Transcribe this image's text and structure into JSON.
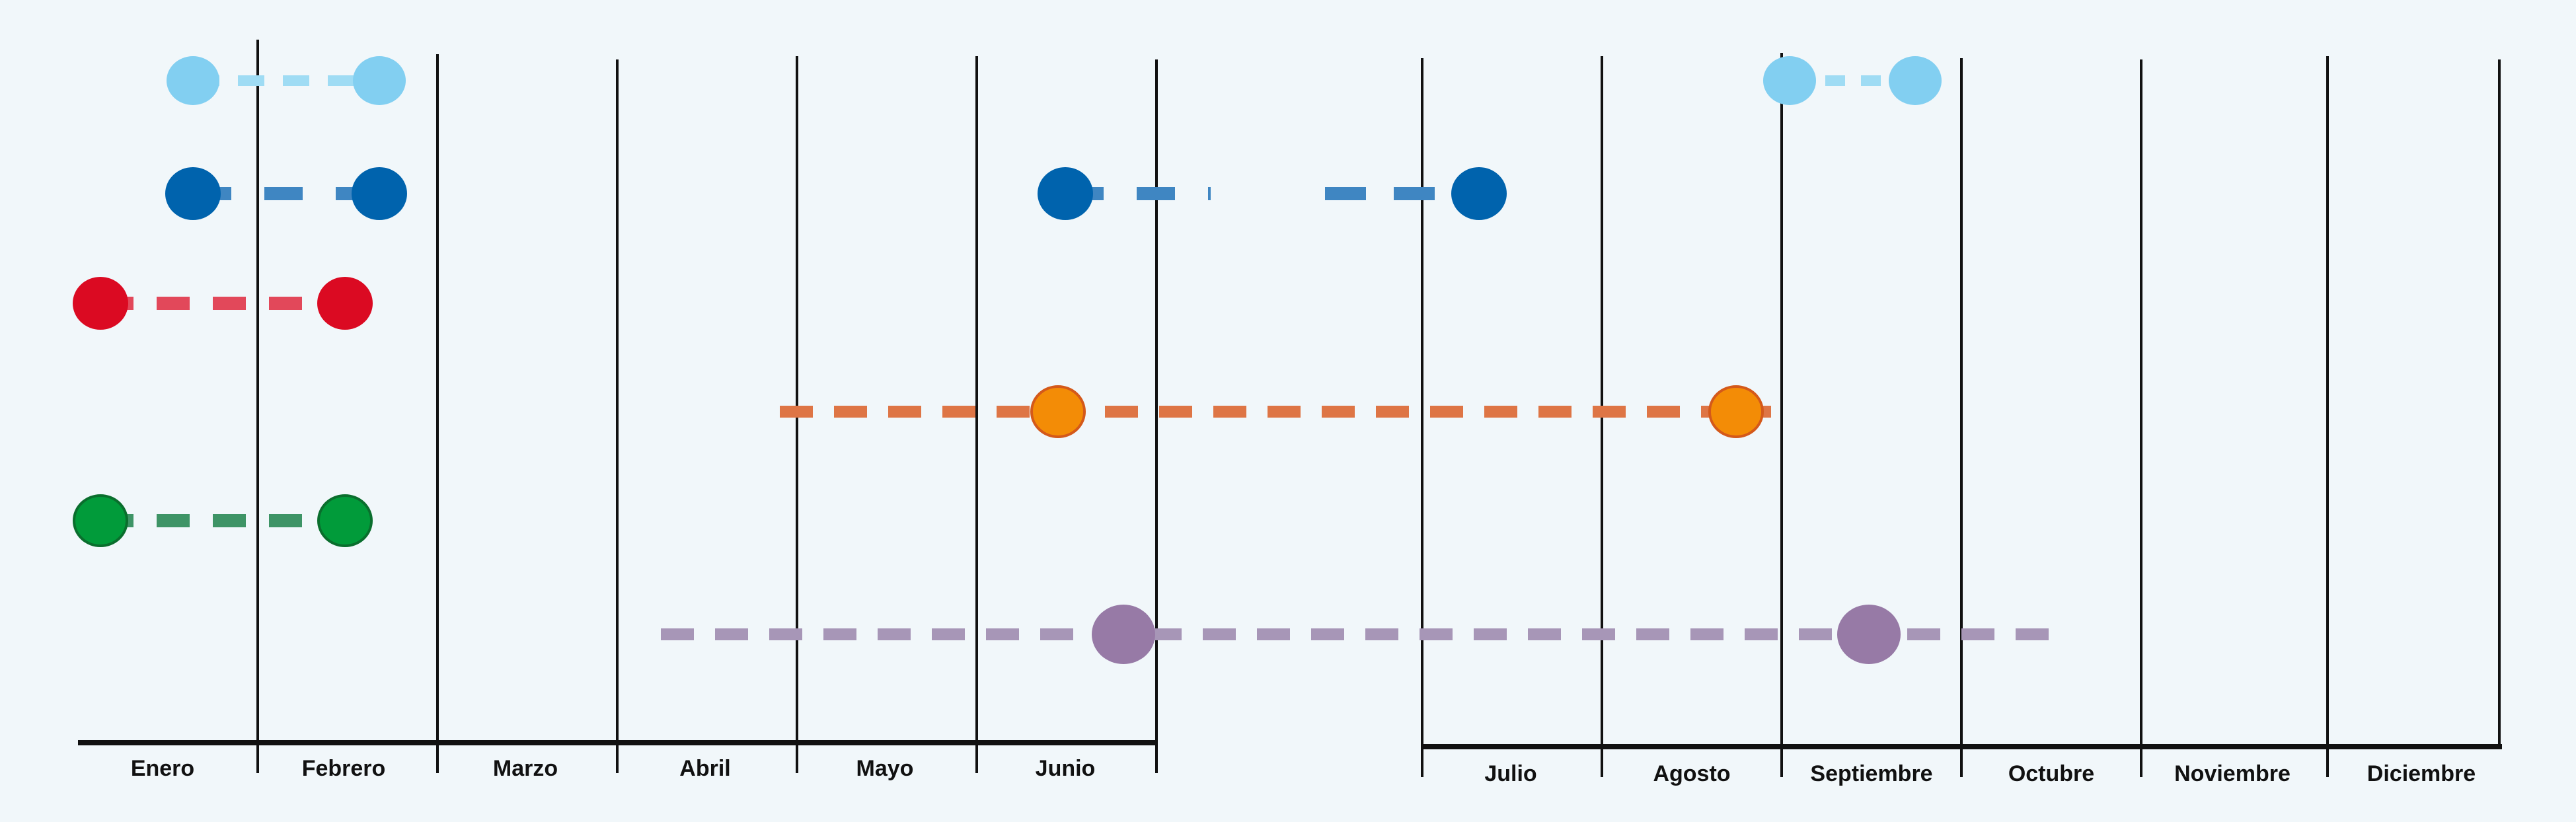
{
  "months_first_half": [
    "Enero",
    "Febrero",
    "Marzo",
    "Abril",
    "Mayo",
    "Junio"
  ],
  "months_second_half": [
    "Julio",
    "Agosto",
    "Septiembre",
    "Octubre",
    "Noviembre",
    "Diciembre"
  ],
  "colors": {
    "background": "#f1f7fa",
    "axis": "#111111",
    "light_blue": "#82cff1",
    "light_blue_dash": "#9fdcf4",
    "dark_blue": "#0063ad",
    "dark_blue_dash": "#3f86c2",
    "red": "#db0a22",
    "red_dash": "#e2485a",
    "orange": "#f38c06",
    "orange_stroke": "#d4591a",
    "orange_dash": "#de7545",
    "green": "#019b3a",
    "green_stroke": "#0a6e2d",
    "green_dash": "#3e9466",
    "purple": "#977aa6",
    "purple_dash": "#a796b7"
  },
  "rows": [
    {
      "name": "light-blue-row",
      "color_key": "light_blue"
    },
    {
      "name": "dark-blue-row",
      "color_key": "dark_blue"
    },
    {
      "name": "red-row",
      "color_key": "red"
    },
    {
      "name": "orange-row",
      "color_key": "orange"
    },
    {
      "name": "green-row",
      "color_key": "green"
    },
    {
      "name": "purple-row",
      "color_key": "purple"
    }
  ]
}
